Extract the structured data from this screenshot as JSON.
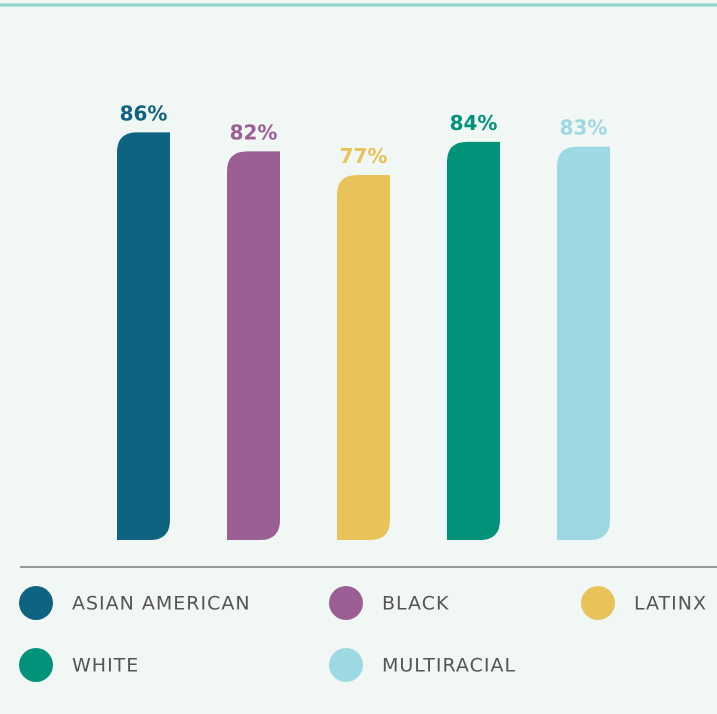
{
  "chart_data": {
    "type": "bar",
    "categories": [
      "ASIAN AMERICAN",
      "BLACK",
      "LATINX",
      "WHITE",
      "MULTIRACIAL"
    ],
    "values": [
      86,
      82,
      77,
      84,
      83
    ],
    "value_labels": [
      "86%",
      "82%",
      "77%",
      "84%",
      "83%"
    ],
    "colors": [
      "#0e6380",
      "#9c5f93",
      "#e8c35a",
      "#00937a",
      "#9ed8e2"
    ],
    "ylim": [
      0,
      100
    ],
    "legend": "bottom"
  }
}
